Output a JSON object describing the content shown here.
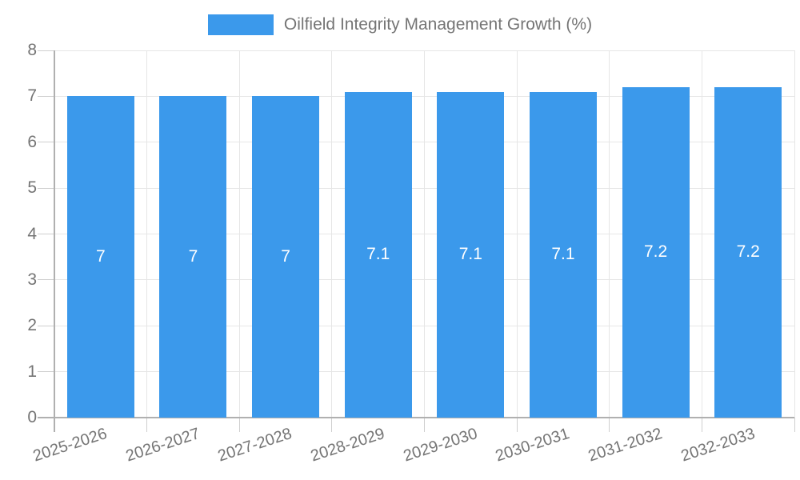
{
  "chart_data": {
    "type": "bar",
    "title": "Oilfield Integrity Management Growth (%)",
    "legend_position": "top",
    "categories": [
      "2025-2026",
      "2026-2027",
      "2027-2028",
      "2028-2029",
      "2029-2030",
      "2030-2031",
      "2031-2032",
      "2032-2033"
    ],
    "values": [
      7,
      7,
      7,
      7.1,
      7.1,
      7.1,
      7.2,
      7.2
    ],
    "bar_labels": [
      "7",
      "7",
      "7",
      "7.1",
      "7.1",
      "7.1",
      "7.2",
      "7.2"
    ],
    "xlabel": "",
    "ylabel": "",
    "ylim": [
      0,
      8
    ],
    "yticks": [
      0,
      1,
      2,
      3,
      4,
      5,
      6,
      7,
      8
    ],
    "grid": true,
    "colors": {
      "bar": "#3b99eb",
      "bar_value_text": "#ffffff",
      "axis_text": "#757575",
      "gridline": "#e6e6e6",
      "axis_line": "#b0b0b0",
      "tick": "#cfcfcf",
      "background": "#ffffff"
    }
  }
}
